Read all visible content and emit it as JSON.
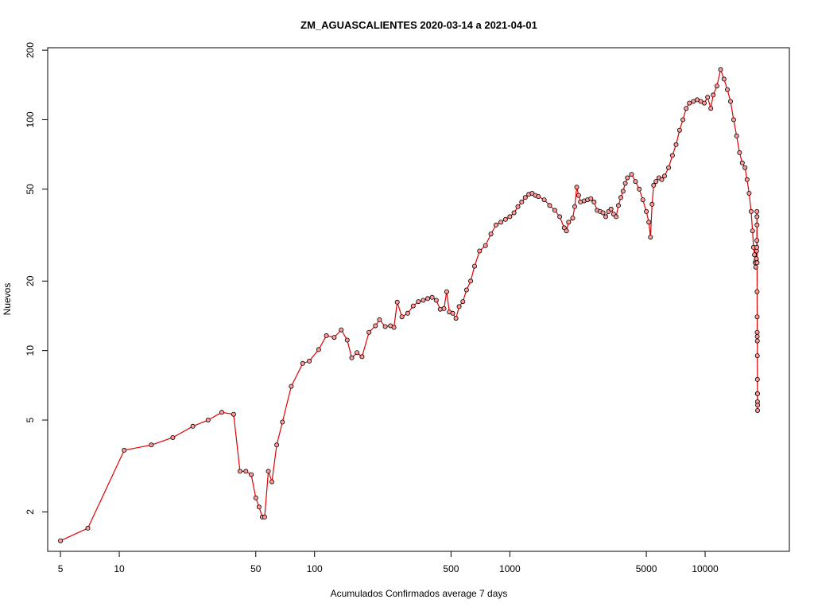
{
  "chart_data": {
    "type": "line",
    "title": "ZM_AGUASCALIENTES 2020-03-14 a 2021-04-01",
    "xlabel": "Acumulados Confirmados average  7  days",
    "ylabel": "Nuevos",
    "x_scale": "log",
    "y_scale": "log",
    "xlim": [
      4.3,
      27000
    ],
    "ylim": [
      1.35,
      205
    ],
    "x_ticks": [
      5,
      10,
      50,
      100,
      500,
      1000,
      5000,
      10000
    ],
    "x_tick_labels": [
      "5",
      "10",
      "50",
      "100",
      "500",
      "1000",
      "5000",
      "10000"
    ],
    "y_ticks": [
      2,
      5,
      10,
      20,
      50,
      100,
      200
    ],
    "y_tick_labels": [
      "2",
      "5",
      "10",
      "20",
      "50",
      "100",
      "200"
    ],
    "grid": false,
    "line_color": "#e00000",
    "marker_fill": "#ff9a9a",
    "marker_stroke": "#000000",
    "series": [
      {
        "x": [
          5,
          6.9,
          10.6,
          14.6,
          18.8,
          23.8,
          28.5,
          33.5,
          38.5,
          41.5,
          44.5,
          47.4,
          50,
          52,
          54,
          55.5,
          58,
          60.5,
          64,
          68.5,
          76,
          87,
          94,
          105,
          115,
          126,
          137,
          147,
          155,
          165,
          175,
          190,
          205,
          215,
          230,
          245,
          255,
          265,
          280,
          300,
          320,
          340,
          360,
          380,
          400,
          420,
          440,
          460,
          475,
          490,
          510,
          530,
          550,
          575,
          600,
          630,
          660,
          700,
          750,
          800,
          850,
          900,
          950,
          1000,
          1050,
          1100,
          1150,
          1200,
          1250,
          1300,
          1350,
          1400,
          1500,
          1600,
          1700,
          1800,
          1900,
          1950,
          2000,
          2100,
          2150,
          2200,
          2250,
          2300,
          2400,
          2500,
          2600,
          2700,
          2800,
          2900,
          3000,
          3100,
          3200,
          3300,
          3400,
          3500,
          3600,
          3700,
          3800,
          3900,
          4000,
          4200,
          4400,
          4600,
          4800,
          5000,
          5150,
          5250,
          5350,
          5450,
          5600,
          5800,
          6000,
          6200,
          6500,
          6800,
          7100,
          7400,
          7700,
          8000,
          8300,
          8700,
          9100,
          9500,
          9900,
          10300,
          10700,
          11000,
          11500,
          12000,
          12500,
          13000,
          13500,
          14000,
          14500,
          15000,
          15500,
          16000,
          16400,
          16800,
          17200,
          17500,
          17700,
          17900,
          18050,
          18150,
          18250,
          18300,
          18350,
          18380,
          18400,
          18420,
          18430,
          18440,
          18450,
          18460,
          18470,
          18480,
          18490,
          18500,
          18510,
          18520,
          18530,
          18540,
          18550,
          18560,
          18570
        ],
        "y": [
          1.5,
          1.7,
          3.7,
          3.9,
          4.2,
          4.7,
          5.0,
          5.4,
          5.3,
          3.0,
          3.0,
          2.9,
          2.3,
          2.1,
          1.9,
          1.9,
          3.0,
          2.7,
          3.9,
          4.9,
          7.0,
          8.8,
          9.0,
          10.1,
          11.6,
          11.4,
          12.3,
          11.1,
          9.3,
          9.8,
          9.4,
          12.0,
          12.8,
          13.6,
          12.7,
          12.8,
          12.6,
          16.2,
          14.0,
          14.5,
          15.6,
          16.3,
          16.5,
          16.8,
          17.0,
          16.5,
          15.1,
          15.2,
          18.0,
          14.7,
          14.5,
          13.8,
          15.5,
          16.3,
          18.3,
          20.0,
          23.2,
          27.0,
          28.5,
          32.0,
          35.0,
          36.0,
          37.0,
          38.0,
          39.5,
          42.0,
          44.0,
          46.0,
          47.5,
          48.0,
          47.0,
          46.5,
          45.0,
          42.5,
          40.5,
          38.0,
          34.0,
          33.0,
          36.0,
          37.5,
          42.0,
          51.0,
          47.0,
          44.0,
          44.5,
          45.0,
          45.5,
          44.0,
          40.5,
          40.0,
          39.5,
          38.0,
          40.0,
          41.0,
          39.0,
          38.0,
          42.5,
          46.0,
          49.0,
          53.0,
          56.0,
          58.0,
          54.0,
          50.0,
          45.0,
          40.0,
          36.0,
          31.0,
          43.0,
          52.0,
          54.0,
          56.0,
          55.0,
          57.0,
          62.0,
          70.0,
          78.0,
          90.0,
          100.0,
          112.0,
          118.0,
          120.0,
          122.0,
          120.0,
          118.0,
          125.0,
          112.0,
          128.0,
          140.0,
          165.0,
          150.0,
          135.0,
          120.0,
          100.0,
          85.0,
          72.0,
          65.0,
          62.0,
          55.0,
          48.0,
          40.0,
          33.0,
          28.0,
          26.0,
          24.0,
          23.0,
          24.5,
          25.0,
          27.0,
          28.0,
          30.0,
          40.0,
          38.0,
          35.0,
          24.0,
          18.0,
          14.0,
          12.0,
          11.5,
          11.0,
          9.5,
          7.5,
          6.5,
          6.0,
          5.5,
          6.5,
          5.8
        ]
      }
    ]
  }
}
